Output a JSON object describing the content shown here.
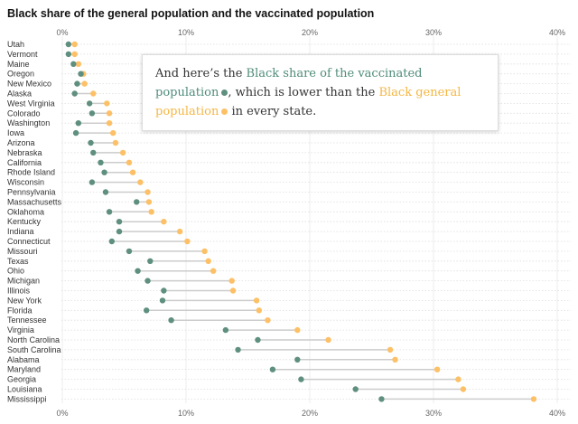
{
  "chart_data": {
    "type": "dot-plot",
    "title": "Black share of the general population and the vaccinated population",
    "xlim": [
      0,
      40
    ],
    "xticks": [
      "0%",
      "10%",
      "20%",
      "30%",
      "40%"
    ],
    "tick_values": [
      0,
      10,
      20,
      30,
      40
    ],
    "grid": true,
    "colors": {
      "vaccinated": "#5e8f7f",
      "general": "#fdc066",
      "connector": "#cccccc"
    },
    "categories": [
      "Utah",
      "Vermont",
      "Maine",
      "Oregon",
      "New Mexico",
      "Alaska",
      "West Virginia",
      "Colorado",
      "Washington",
      "Iowa",
      "Arizona",
      "Nebraska",
      "California",
      "Rhode Island",
      "Wisconsin",
      "Pennsylvania",
      "Massachusetts",
      "Oklahoma",
      "Kentucky",
      "Indiana",
      "Connecticut",
      "Missouri",
      "Texas",
      "Ohio",
      "Michigan",
      "Illinois",
      "New York",
      "Florida",
      "Tennessee",
      "Virginia",
      "North Carolina",
      "South Carolina",
      "Alabama",
      "Maryland",
      "Georgia",
      "Louisiana",
      "Mississippi"
    ],
    "series": [
      {
        "name": "Black share of the vaccinated population",
        "values": [
          0.5,
          0.5,
          0.9,
          1.5,
          1.2,
          1.0,
          2.2,
          2.4,
          1.3,
          1.1,
          2.3,
          2.5,
          3.1,
          3.4,
          2.4,
          3.5,
          6.0,
          3.8,
          4.6,
          4.6,
          4.0,
          5.4,
          7.1,
          6.1,
          6.9,
          8.2,
          8.1,
          6.8,
          8.8,
          13.2,
          15.8,
          14.2,
          19.0,
          17.0,
          19.3,
          23.7,
          25.8
        ]
      },
      {
        "name": "Black general population",
        "values": [
          1.0,
          1.0,
          1.3,
          1.7,
          1.8,
          2.5,
          3.6,
          3.8,
          3.8,
          4.1,
          4.3,
          4.9,
          5.4,
          5.7,
          6.3,
          6.9,
          7.0,
          7.2,
          8.2,
          9.5,
          10.1,
          11.5,
          11.8,
          12.2,
          13.7,
          13.8,
          15.7,
          15.9,
          16.6,
          19.0,
          21.5,
          26.5,
          26.9,
          30.3,
          32.0,
          32.4,
          38.1
        ]
      }
    ]
  },
  "annotation": {
    "part1": "And here’s the ",
    "vaccinated_label": "Black share of the vaccinated population",
    "part2": ", which is lower than the ",
    "general_label": "Black general population",
    "part3": " in every state."
  }
}
